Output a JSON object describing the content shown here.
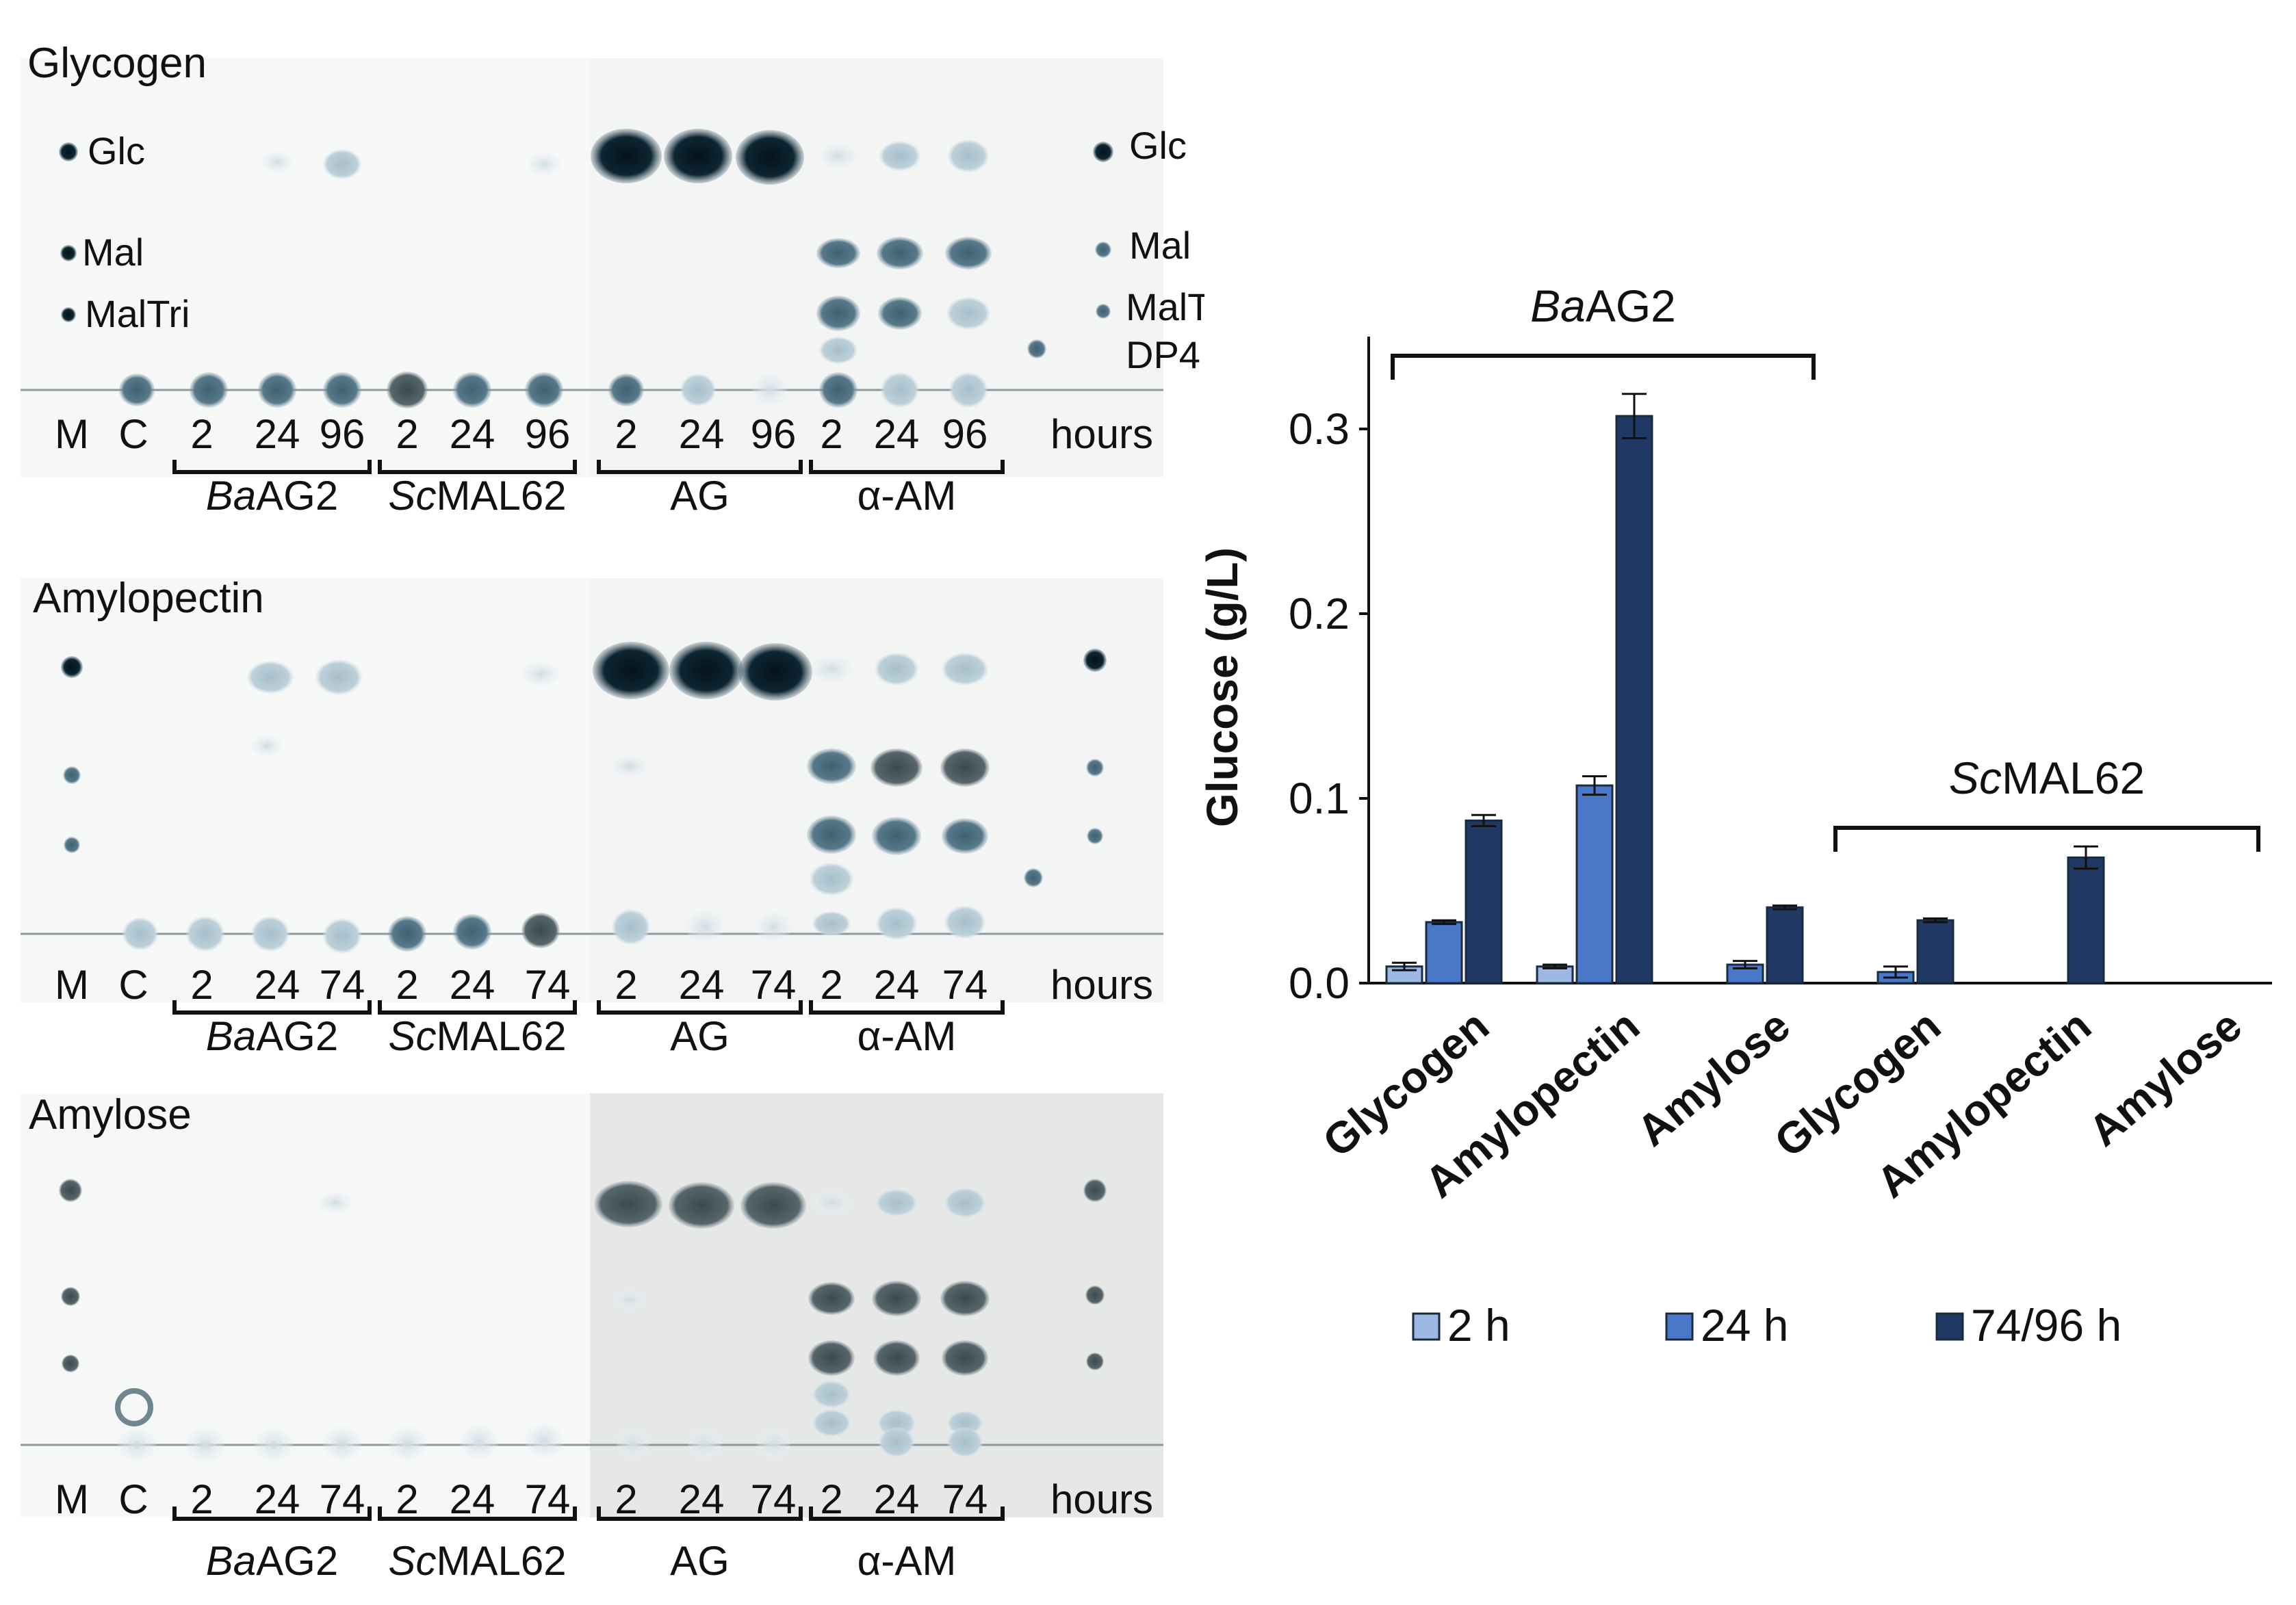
{
  "tlc": {
    "panels": [
      {
        "title": "Glycogen",
        "lanes": [
          "M",
          "C",
          "2",
          "24",
          "96",
          "2",
          "24",
          "96",
          "2",
          "24",
          "96",
          "2",
          "24",
          "96",
          "hours"
        ],
        "markers_left": [
          "Glc",
          "Mal",
          "MalTri"
        ],
        "markers_right": [
          "Glc",
          "Mal",
          "MalTri",
          "DP4"
        ]
      },
      {
        "title": "Amylopectin",
        "lanes": [
          "M",
          "C",
          "2",
          "24",
          "74",
          "2",
          "24",
          "74",
          "2",
          "24",
          "74",
          "2",
          "24",
          "74",
          "hours"
        ]
      },
      {
        "title": "Amylose",
        "lanes": [
          "M",
          "C",
          "2",
          "24",
          "74",
          "2",
          "24",
          "74",
          "2",
          "24",
          "74",
          "2",
          "24",
          "74",
          "hours"
        ]
      }
    ],
    "groups": [
      "BaAG2",
      "ScMAL62",
      "AG",
      "α-AM"
    ]
  },
  "chart_data": {
    "type": "bar",
    "ylabel": "Glucose (g/L)",
    "ylim": [
      0,
      0.35
    ],
    "yticks": [
      "0.0",
      "0.1",
      "0.2",
      "0.3"
    ],
    "groups": [
      {
        "prefix": "Ba",
        "suffix": "AG2"
      },
      {
        "prefix": "Sc",
        "suffix": "MAL62"
      }
    ],
    "categories": [
      "Glycogen",
      "Amylopectin",
      "Amylose",
      "Glycogen",
      "Amylopectin",
      "Amylose"
    ],
    "series": [
      {
        "name": "2 h",
        "color": "#9db8e2",
        "values": [
          0.009,
          0.009,
          null,
          null,
          null,
          null
        ],
        "errors": [
          0.002,
          0.001,
          null,
          null,
          null,
          null
        ]
      },
      {
        "name": "24 h",
        "color": "#4a78c8",
        "values": [
          0.033,
          0.107,
          0.01,
          0.006,
          null,
          null
        ],
        "errors": [
          0.001,
          0.005,
          0.002,
          0.003,
          null,
          null
        ]
      },
      {
        "name": "74/96 h",
        "color": "#203864",
        "values": [
          0.088,
          0.307,
          0.041,
          0.034,
          0.068,
          null
        ],
        "errors": [
          0.003,
          0.012,
          0.001,
          0.001,
          0.006,
          null
        ]
      }
    ]
  }
}
